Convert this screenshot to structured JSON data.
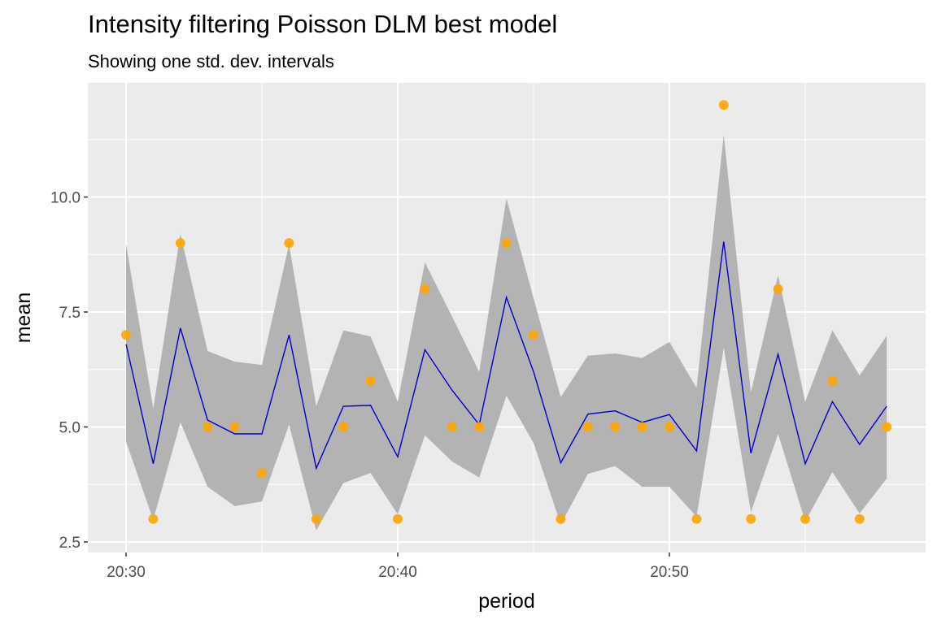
{
  "chart_data": {
    "type": "line",
    "title": "Intensity filtering Poisson DLM best model",
    "subtitle": "Showing one std. dev. intervals",
    "xlabel": "period",
    "ylabel": "mean",
    "x": [
      "20:30",
      "20:31",
      "20:32",
      "20:33",
      "20:34",
      "20:35",
      "20:36",
      "20:37",
      "20:38",
      "20:39",
      "20:40",
      "20:41",
      "20:42",
      "20:43",
      "20:44",
      "20:45",
      "20:46",
      "20:47",
      "20:48",
      "20:49",
      "20:50",
      "20:51",
      "20:52",
      "20:53",
      "20:54",
      "20:55",
      "20:56",
      "20:57",
      "20:58"
    ],
    "x_ticks": [
      "20:30",
      "20:40",
      "20:50"
    ],
    "y_ticks": [
      2.5,
      5.0,
      7.5,
      10.0
    ],
    "y_tick_labels": [
      "2.5",
      "5.0",
      "7.5",
      "10.0"
    ],
    "ylim": [
      2.3,
      12.6
    ],
    "series": [
      {
        "kind": "filtered-mean-line",
        "color": "#0000cd",
        "values": [
          6.8,
          4.2,
          7.15,
          5.15,
          4.85,
          4.85,
          7.0,
          4.1,
          5.45,
          5.47,
          4.35,
          6.68,
          5.8,
          5.05,
          7.82,
          6.2,
          4.22,
          5.28,
          5.35,
          5.1,
          5.27,
          4.48,
          9.03,
          4.43,
          6.58,
          4.2,
          5.55,
          4.62,
          5.45
        ]
      },
      {
        "kind": "interval-upper",
        "color": "#b3b3b3",
        "values": [
          8.98,
          5.4,
          9.2,
          6.65,
          6.42,
          6.35,
          8.97,
          5.45,
          7.1,
          6.97,
          5.55,
          8.58,
          7.4,
          6.2,
          9.97,
          7.8,
          5.65,
          6.55,
          6.6,
          6.5,
          6.85,
          5.85,
          11.35,
          5.75,
          8.3,
          5.55,
          7.1,
          6.12,
          6.98
        ]
      },
      {
        "kind": "interval-lower",
        "color": "#b3b3b3",
        "values": [
          4.68,
          2.98,
          5.1,
          3.7,
          3.28,
          3.38,
          5.05,
          2.75,
          3.78,
          4.0,
          3.1,
          4.82,
          4.25,
          3.9,
          5.68,
          4.65,
          2.88,
          3.98,
          4.15,
          3.7,
          3.7,
          3.05,
          6.72,
          3.15,
          4.85,
          2.95,
          4.02,
          3.12,
          3.88
        ]
      },
      {
        "kind": "observed-counts",
        "color": "#ffa500",
        "values": [
          7,
          3,
          9,
          5,
          5,
          4,
          9,
          3,
          5,
          6,
          3,
          8,
          5,
          5,
          9,
          7,
          3,
          5,
          5,
          5,
          5,
          3,
          12,
          3,
          8,
          3,
          6,
          3,
          5
        ]
      }
    ],
    "grid": true
  }
}
